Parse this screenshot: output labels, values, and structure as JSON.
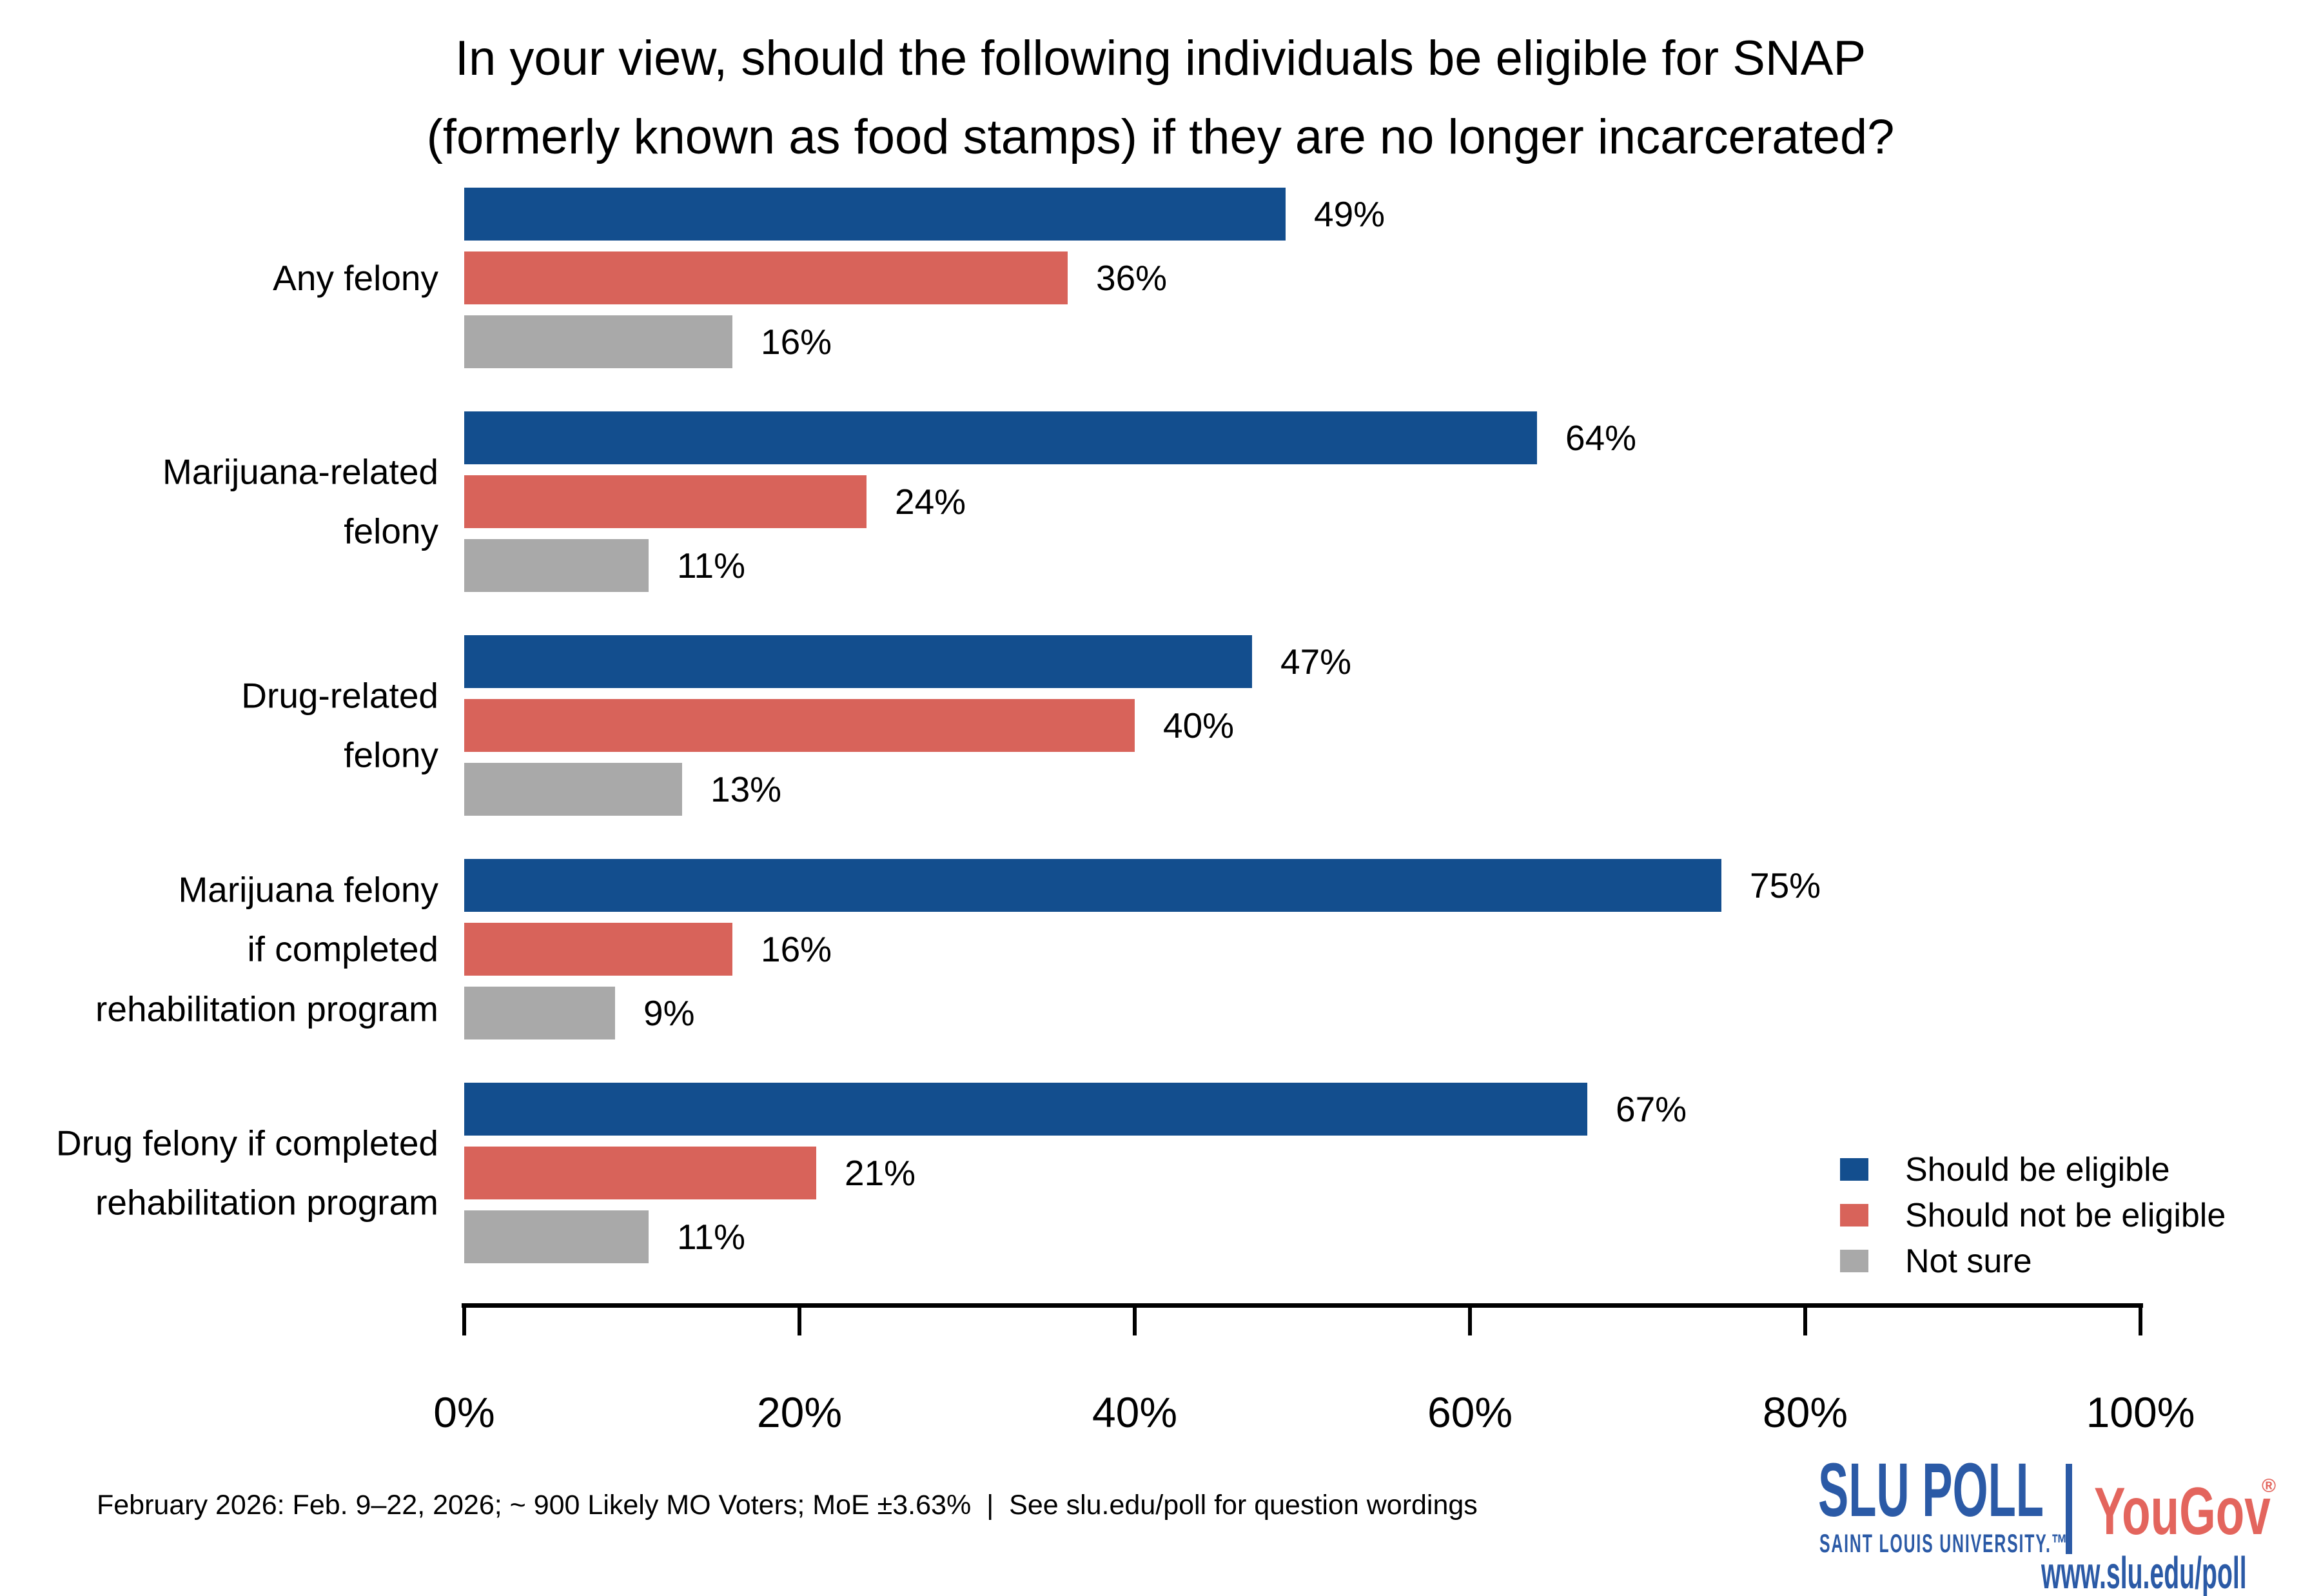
{
  "title": {
    "line1": "In your view, should the following individuals be eligible for SNAP",
    "line2": "(formerly known as food stamps) if they are no longer incarcerated?"
  },
  "chart_data": {
    "type": "bar",
    "orientation": "horizontal",
    "title": "In your view, should the following individuals be eligible for SNAP (formerly known as food stamps) if they are no longer incarcerated?",
    "categories": [
      {
        "label": "Any felony",
        "lines": [
          "Any felony"
        ]
      },
      {
        "label": "Marijuana-related felony",
        "lines": [
          "Marijuana-related",
          "felony"
        ]
      },
      {
        "label": "Drug-related felony",
        "lines": [
          "Drug-related",
          "felony"
        ]
      },
      {
        "label": "Marijuana felony if completed rehabilitation program",
        "lines": [
          "Marijuana felony",
          "if completed",
          "rehabilitation program"
        ]
      },
      {
        "label": "Drug felony if completed rehabilitation program",
        "lines": [
          "Drug felony if completed",
          "rehabilitation program"
        ]
      }
    ],
    "series": [
      {
        "key": "should-be-eligible",
        "name": "Should be eligible",
        "color": "#134E8E",
        "values": [
          49,
          64,
          47,
          75,
          67
        ]
      },
      {
        "key": "should-not-be-eligible",
        "name": "Should not be eligible",
        "color": "#D8635A",
        "values": [
          36,
          24,
          40,
          16,
          21
        ]
      },
      {
        "key": "not-sure",
        "name": "Not sure",
        "color": "#A9A9A9",
        "values": [
          16,
          11,
          13,
          9,
          11
        ]
      }
    ],
    "value_suffix": "%",
    "xlim": [
      0,
      100
    ],
    "x_ticks": [
      {
        "pct": 0,
        "label": "0%"
      },
      {
        "pct": 20,
        "label": "20%"
      },
      {
        "pct": 40,
        "label": "40%"
      },
      {
        "pct": 60,
        "label": "60%"
      },
      {
        "pct": 80,
        "label": "80%"
      },
      {
        "pct": 100,
        "label": "100%"
      }
    ],
    "grid": false,
    "legend_position": "bottom-right"
  },
  "footer": {
    "note": "February 2026: Feb. 9–22, 2026; ~ 900 Likely MO Voters; MoE ±3.63%  |  See slu.edu/poll for question wordings"
  },
  "logo": {
    "slu_poll": "SLU POLL",
    "slu_sub": "SAINT LOUIS UNIVERSITY.™",
    "yougov": "YouGov",
    "reg": "®",
    "url": "www.slu.edu/poll"
  },
  "colors": {
    "bar_blue": "#134E8E",
    "bar_red": "#D8635A",
    "bar_gray": "#A9A9A9",
    "axis": "#000000",
    "logo_navy": "#2B5AA6",
    "yougov_red": "#E3655D",
    "text": "#000000"
  }
}
